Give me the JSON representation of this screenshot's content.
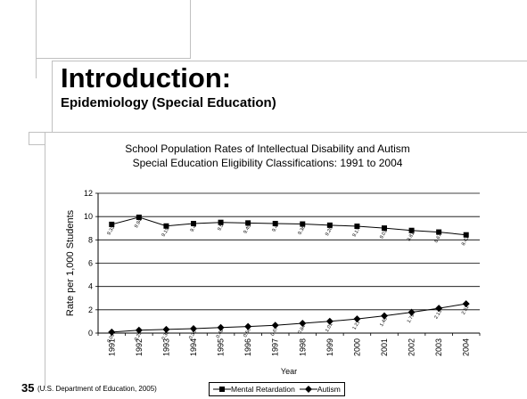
{
  "slide": {
    "title": "Introduction:",
    "subtitle": "Epidemiology (Special Education)",
    "number": "35",
    "citation": "(U.S. Department of Education, 2005)"
  },
  "chart_data": {
    "type": "line",
    "title": "School Population Rates of Intellectual Disability and Autism",
    "subtitle": "Special Education Eligibility Classifications: 1991 to 2004",
    "xlabel": "Year",
    "ylabel": "Rate per 1,000 Students",
    "ylim": [
      0,
      12
    ],
    "yticks": [
      "0",
      "2",
      "4",
      "6",
      "8",
      "10",
      "12"
    ],
    "grid": true,
    "legend_position": "bottom",
    "categories": [
      "1991",
      "1992",
      "1993",
      "1994",
      "1995",
      "1996",
      "1997",
      "1998",
      "1999",
      "2000",
      "2001",
      "2002",
      "2003",
      "2004"
    ],
    "series": [
      {
        "name": "Mental Retardation",
        "marker": "square",
        "values": [
          9.33,
          9.94,
          9.19,
          9.4,
          9.5,
          9.45,
          9.4,
          9.36,
          9.26,
          9.17,
          9.01,
          8.81,
          8.67,
          8.43
        ],
        "labels": [
          "9.33",
          "9.94",
          "9.19",
          "9.4",
          "9.5",
          "9.45",
          "9.4",
          "9.36",
          "9.26",
          "9.17",
          "9.01",
          "8.81",
          "8.67",
          "8.43"
        ]
      },
      {
        "name": "Autism",
        "marker": "diamond",
        "values": [
          0.09,
          0.25,
          0.32,
          0.38,
          0.48,
          0.56,
          0.67,
          0.84,
          1.01,
          1.21,
          1.48,
          1.79,
          2.13,
          2.51
        ],
        "labels": [
          "0.09",
          "0.25",
          "0.32",
          "0.38",
          "0.48",
          "0.56",
          "0.67",
          "0.84",
          "1.01",
          "1.21",
          "1.48",
          "1.79",
          "2.13",
          "2.51"
        ]
      }
    ]
  }
}
